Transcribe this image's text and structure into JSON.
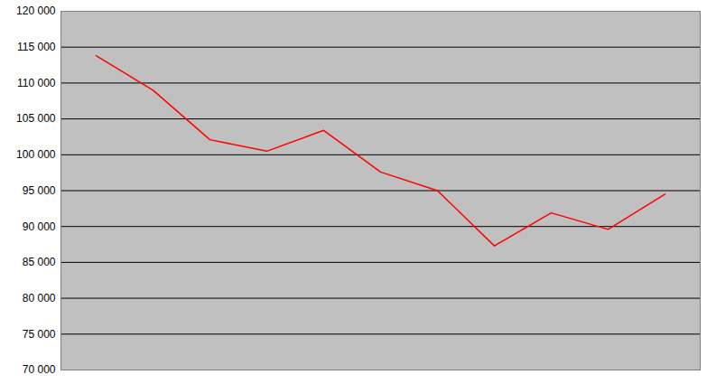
{
  "chart_data": {
    "type": "line",
    "categories": [
      null,
      null,
      null,
      null,
      null,
      null,
      null,
      null,
      null,
      null,
      null
    ],
    "values": [
      113800,
      109000,
      102100,
      100500,
      103400,
      97600,
      95000,
      87300,
      91900,
      89600,
      94500
    ],
    "color": "#ff0000",
    "ylim": [
      70000,
      120000
    ],
    "yticks": [
      {
        "value": 70000,
        "label": "70 000"
      },
      {
        "value": 75000,
        "label": "75 000"
      },
      {
        "value": 80000,
        "label": "80 000"
      },
      {
        "value": 85000,
        "label": "85 000"
      },
      {
        "value": 90000,
        "label": "90 000"
      },
      {
        "value": 95000,
        "label": "95 000"
      },
      {
        "value": 100000,
        "label": "100 000"
      },
      {
        "value": 105000,
        "label": "105 000"
      },
      {
        "value": 110000,
        "label": "110 000"
      },
      {
        "value": 115000,
        "label": "115 000"
      },
      {
        "value": 120000,
        "label": "120 000"
      }
    ],
    "grid": true,
    "tick_labels": "y"
  }
}
